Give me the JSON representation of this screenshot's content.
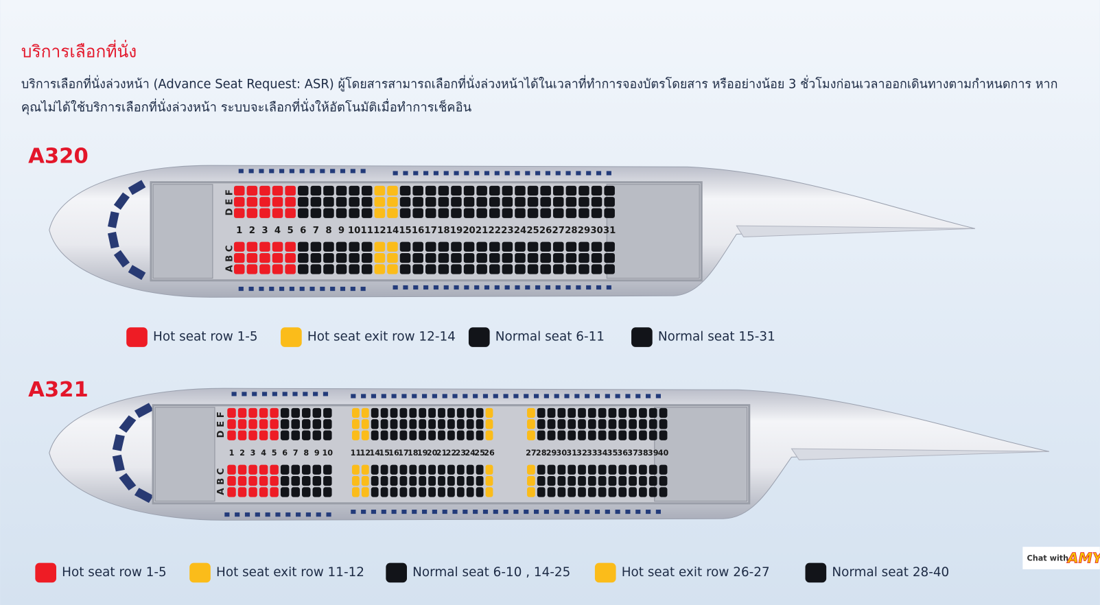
{
  "header": {
    "title": "บริการเลือกที่นั่ง",
    "description": [
      "บริการเลือกที่นั่งล่วงหน้า (Advance Seat Request: ASR) ผู้โดยสารสามารถเลือกที่นั่งล่วงหน้าได้ในเวลาที่ทำการจองบัตรโดยสาร หรืออย่างน้อย 3 ชั่วโมงก่อนเวลาออกเดินทางตามกำหนดการ หาก",
      "คุณไม่ได้ใช้บริการเลือกที่นั่งล่วงหน้า ระบบจะเลือกที่นั่งให้อัตโนมัติเมื่อทำการเช็คอิน"
    ]
  },
  "aircraft": [
    {
      "name": "A320",
      "upper_letters": "D E F",
      "lower_letters": "A B C",
      "blocks": [
        {
          "segments": [
            {
              "color": "#ee1c25",
              "rows": [
                "1",
                "2",
                "3",
                "4",
                "5"
              ]
            },
            {
              "color": "#121419",
              "rows": [
                "6",
                "7",
                "8",
                "9",
                "10",
                "11"
              ]
            },
            {
              "color": "#fbbc1a",
              "rows": [
                "12",
                "14"
              ]
            },
            {
              "color": "#121419",
              "rows": [
                "15",
                "16",
                "17",
                "18",
                "19",
                "20",
                "21",
                "22",
                "23",
                "24",
                "25",
                "26",
                "27",
                "28",
                "29",
                "30",
                "31"
              ]
            }
          ]
        }
      ],
      "legend": [
        {
          "label": "Hot seat row 1-5",
          "color": "#ee1c25"
        },
        {
          "label": "Hot seat exit row 12-14",
          "color": "#fbbc1a"
        },
        {
          "label": "Normal seat 6-11",
          "color": "#121419"
        },
        {
          "label": "Normal seat 15-31",
          "color": "#121419"
        }
      ]
    },
    {
      "name": "A321",
      "upper_letters": "D E F",
      "lower_letters": "A B C",
      "blocks": [
        {
          "segments": [
            {
              "color": "#ee1c25",
              "rows": [
                "1",
                "2",
                "3",
                "4",
                "5"
              ]
            },
            {
              "color": "#121419",
              "rows": [
                "6",
                "7",
                "8",
                "9",
                "10"
              ]
            }
          ]
        },
        {
          "segments": [
            {
              "color": "#fbbc1a",
              "rows": [
                "11",
                "12"
              ]
            },
            {
              "color": "#121419",
              "rows": [
                "14",
                "15",
                "16",
                "17",
                "18",
                "19",
                "20",
                "21",
                "22",
                "23",
                "24",
                "25"
              ]
            },
            {
              "color": "#fbbc1a",
              "rows": [
                "26"
              ]
            }
          ]
        },
        {
          "segments": [
            {
              "color": "#fbbc1a",
              "rows": [
                "27"
              ]
            },
            {
              "color": "#121419",
              "rows": [
                "28",
                "29",
                "30",
                "31",
                "32",
                "33",
                "34",
                "35",
                "36",
                "37",
                "38",
                "39",
                "40"
              ]
            }
          ]
        }
      ],
      "legend": [
        {
          "label": "Hot seat row 1-5",
          "color": "#ee1c25"
        },
        {
          "label": "Hot seat exit row 11-12",
          "color": "#fbbc1a"
        },
        {
          "label": "Normal seat 6-10 , 14-25",
          "color": "#121419"
        },
        {
          "label": "Hot seat exit row 26-27",
          "color": "#fbbc1a"
        },
        {
          "label": "Normal seat 28-40",
          "color": "#121419"
        }
      ]
    }
  ],
  "chat": {
    "prefix": "Chat with",
    "name": "AMY"
  }
}
